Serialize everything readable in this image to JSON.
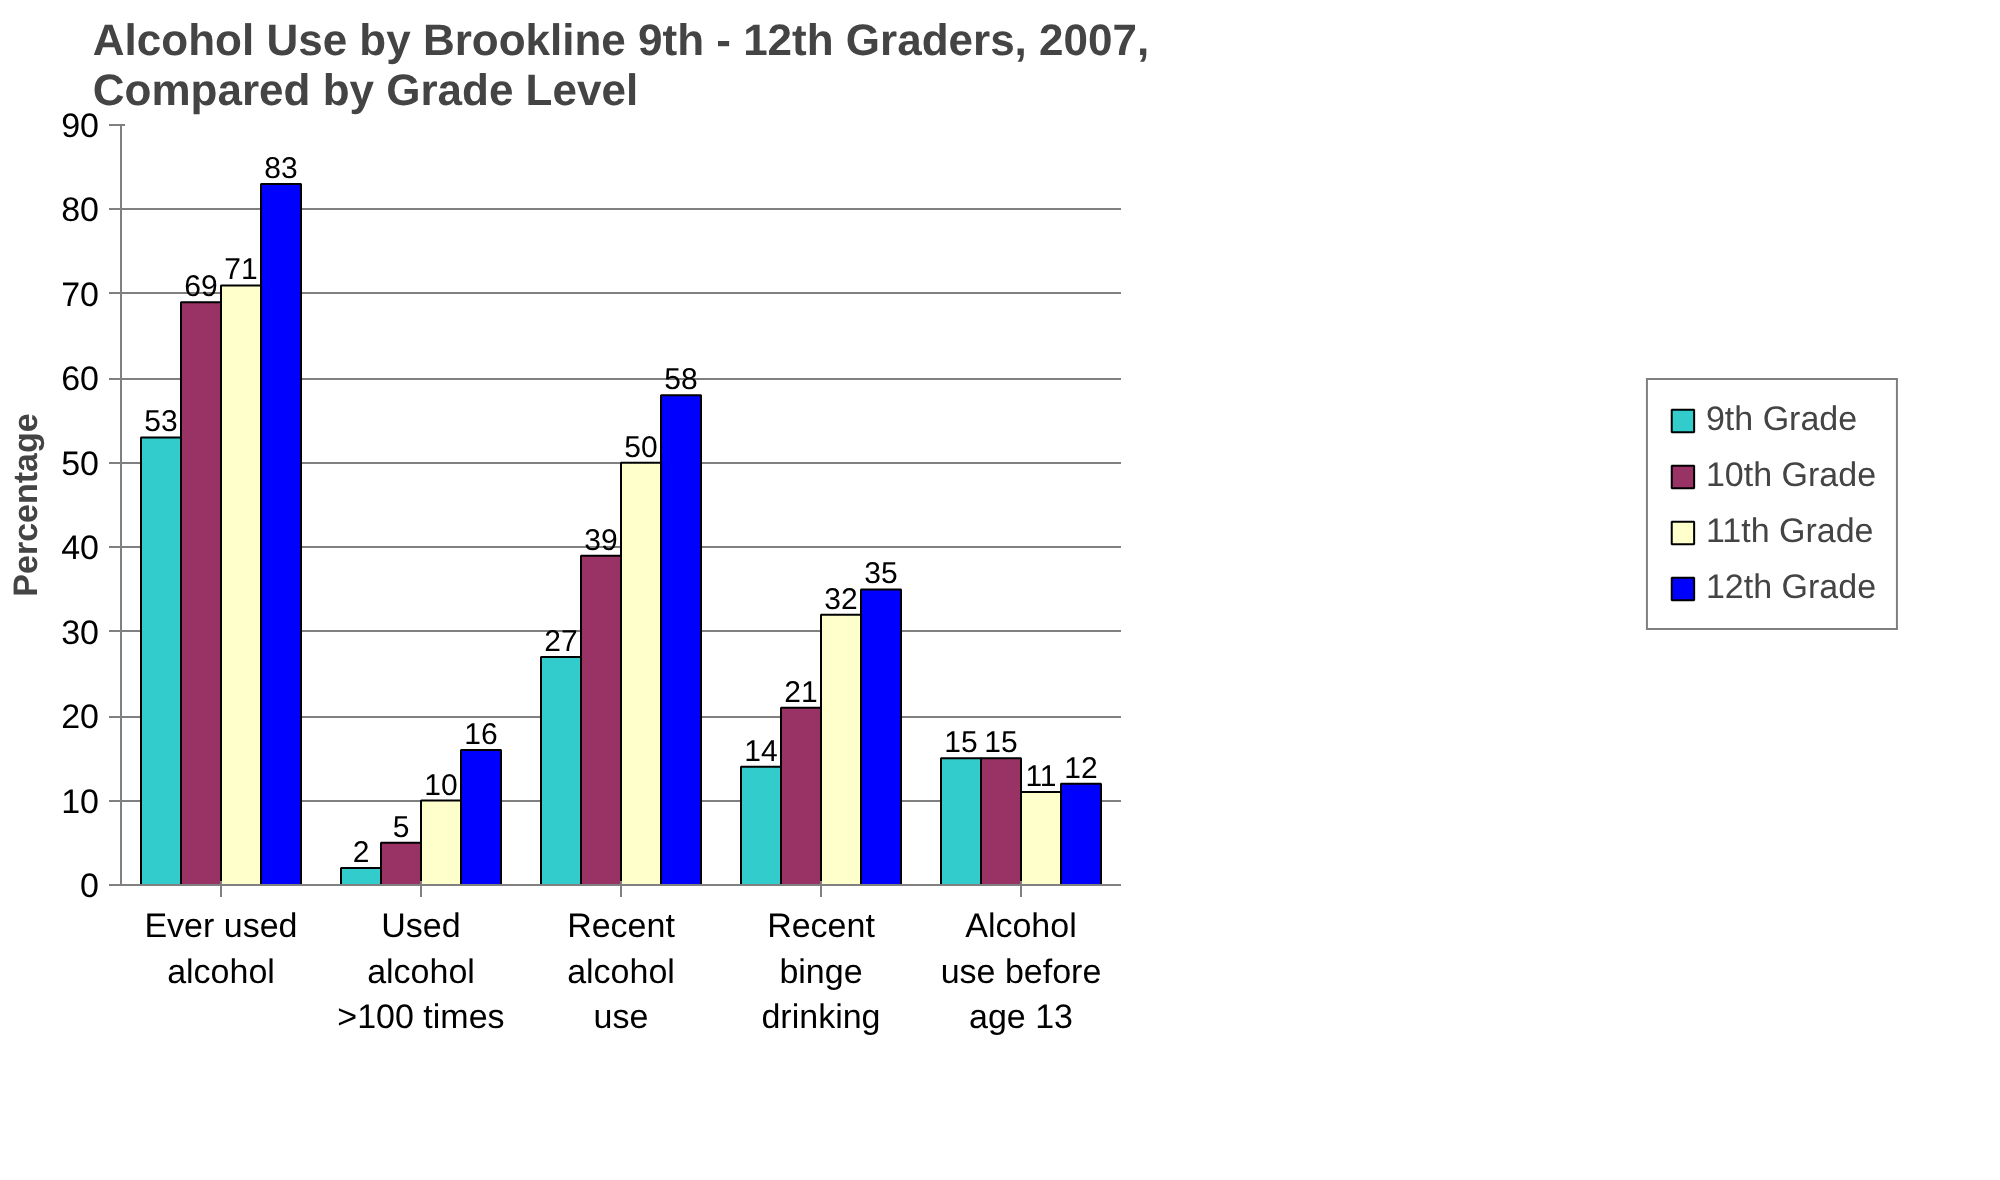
{
  "chart_data": {
    "type": "bar",
    "title": "Alcohol Use by Brookline 9th - 12th Graders, 2007, Compared by Grade Level",
    "ylabel": "Percentage",
    "categories": [
      "Ever used alcohol",
      "Used alcohol >100 times",
      "Recent alcohol use",
      "Recent binge drinking",
      "Alcohol use before age 13"
    ],
    "series": [
      {
        "name": "9th Grade",
        "color": "#33cccc",
        "values": [
          53,
          2,
          27,
          14,
          15
        ]
      },
      {
        "name": "10th Grade",
        "color": "#993366",
        "values": [
          69,
          5,
          39,
          21,
          15
        ]
      },
      {
        "name": "11th Grade",
        "color": "#ffffcc",
        "values": [
          71,
          10,
          50,
          32,
          11
        ]
      },
      {
        "name": "12th Grade",
        "color": "#0000ff",
        "values": [
          83,
          16,
          58,
          35,
          12
        ]
      }
    ],
    "ylim": [
      0,
      90
    ],
    "yticks": [
      0,
      10,
      20,
      30,
      40,
      50,
      60,
      70,
      80,
      90
    ],
    "grid": "y",
    "legend": "right",
    "data_labels": true
  }
}
